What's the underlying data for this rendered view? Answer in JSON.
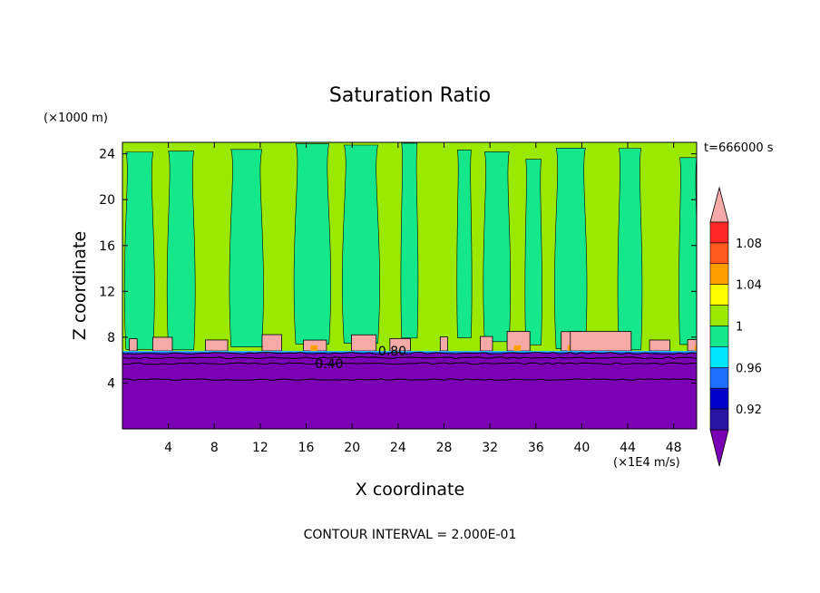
{
  "chart_data": {
    "type": "filled-contour",
    "title": "Saturation Ratio",
    "xlabel": "X coordinate",
    "ylabel": "Z coordinate",
    "x_unit": "(×1E4 m/s)",
    "y_unit": "(×1000 m)",
    "time_label": "t=666000 s",
    "footer": "CONTOUR INTERVAL = 2.000E-01",
    "xlim": [
      0,
      50
    ],
    "ylim": [
      0,
      25
    ],
    "x_ticks": [
      "4",
      "8",
      "12",
      "16",
      "20",
      "24",
      "28",
      "32",
      "36",
      "40",
      "44",
      "48"
    ],
    "y_ticks": [
      "4",
      "8",
      "12",
      "16",
      "20",
      "24"
    ],
    "contour_labels": [
      {
        "text": "0.40",
        "x": 18.0,
        "y": 5.7
      },
      {
        "text": "0.80",
        "x": 23.5,
        "y": 6.8
      }
    ],
    "colorbar": {
      "levels": [
        0.9,
        0.92,
        0.94,
        0.96,
        0.98,
        1.0,
        1.02,
        1.04,
        1.06,
        1.08,
        1.1
      ],
      "labels": [
        "0.92",
        "0.96",
        "1",
        "1.04",
        "1.08"
      ],
      "label_values": [
        0.92,
        0.96,
        1.0,
        1.04,
        1.08
      ],
      "colors": [
        "#7a00b4",
        "#2a14a4",
        "#0000c8",
        "#1e6eff",
        "#00e6ff",
        "#14e88a",
        "#9be800",
        "#ffff00",
        "#ffa000",
        "#ff5a1e",
        "#ff2828",
        "#f5aaa8"
      ]
    },
    "regions": {
      "dry_layer_value": 0.4,
      "dry_layer_top": 6.8,
      "cloud_band_value": 1.1,
      "cloud_band_range": [
        6.8,
        8.6
      ],
      "upper_values": [
        0.99,
        1.01
      ]
    }
  }
}
